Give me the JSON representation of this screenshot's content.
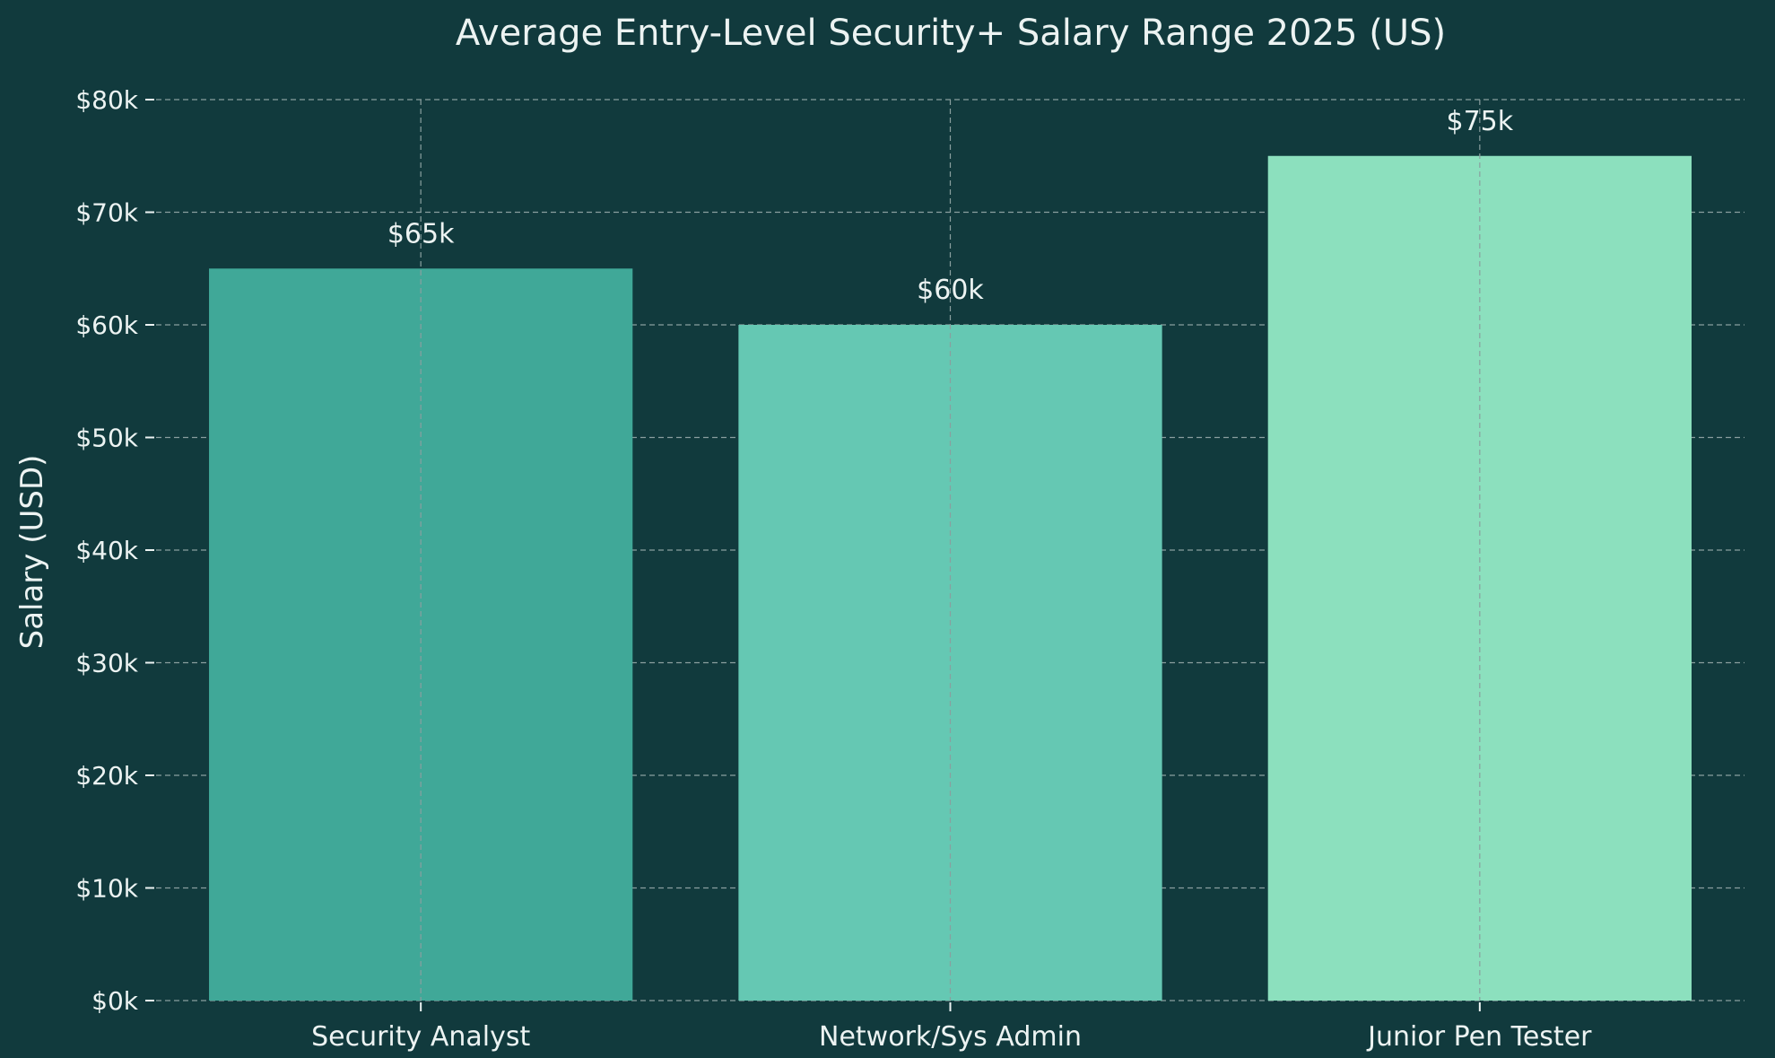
{
  "chart_data": {
    "type": "bar",
    "title": "Average Entry-Level Security+ Salary Range 2025 (US)",
    "xlabel": "",
    "ylabel": "Salary (USD)",
    "categories": [
      "Security Analyst",
      "Network/Sys Admin",
      "Junior Pen Tester"
    ],
    "values": [
      65000,
      60000,
      75000
    ],
    "value_labels": [
      "$65k",
      "$60k",
      "$75k"
    ],
    "colors": [
      "#40a898",
      "#65c8b3",
      "#8ce0be"
    ],
    "ylim": [
      0,
      80000
    ],
    "yticks": [
      0,
      10000,
      20000,
      30000,
      40000,
      50000,
      60000,
      70000,
      80000
    ],
    "ytick_labels": [
      "$0k",
      "$10k",
      "$20k",
      "$30k",
      "$40k",
      "$50k",
      "$60k",
      "$70k",
      "$80k"
    ],
    "grid": true,
    "legend": false
  },
  "style": {
    "background": "#113a3d",
    "text": "#ecf3f2",
    "grid": "#8a9f9f"
  }
}
